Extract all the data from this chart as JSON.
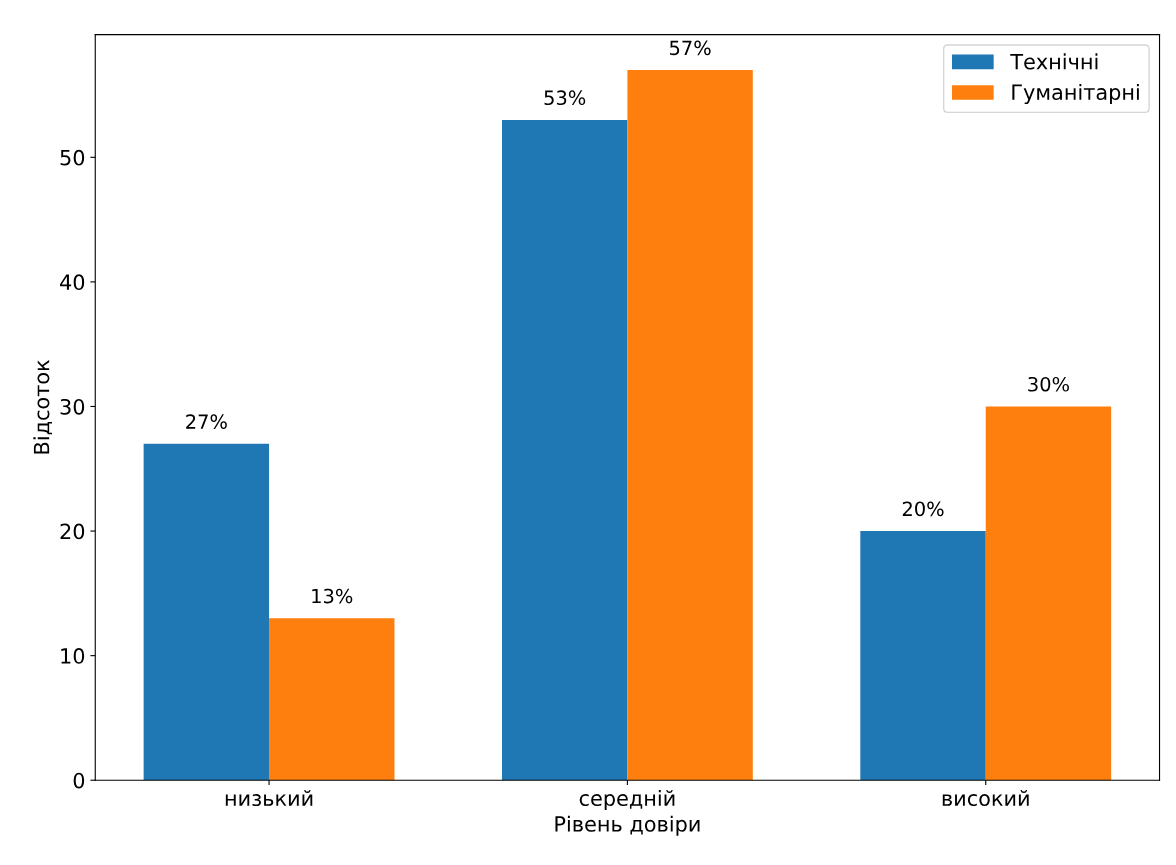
{
  "chart_data": {
    "type": "bar",
    "xlabel": "Рівень довіри",
    "ylabel": "Відсоток",
    "categories": [
      "низький",
      "середній",
      "високий"
    ],
    "series": [
      {
        "name": "Технічні",
        "color": "#1f77b4",
        "values": [
          27,
          53,
          20
        ],
        "value_labels": [
          "27%",
          "53%",
          "20%"
        ]
      },
      {
        "name": "Гуманітарні",
        "color": "#ff7f0e",
        "values": [
          13,
          57,
          30
        ],
        "value_labels": [
          "13%",
          "57%",
          "30%"
        ]
      }
    ],
    "ylim": [
      0,
      59.85
    ],
    "yticks": [
      0,
      10,
      20,
      30,
      40,
      50
    ],
    "legend": "top right",
    "grid": false
  }
}
